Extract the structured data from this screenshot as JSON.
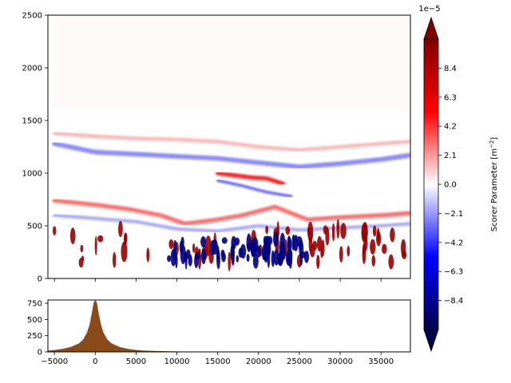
{
  "chart_data": [
    {
      "type": "heatmap",
      "title": "",
      "xlabel": "",
      "ylabel": "",
      "xlim": [
        -5800,
        38600
      ],
      "ylim": [
        0,
        2500
      ],
      "x_ticks_labeled": false,
      "x_ticks": [
        -5000,
        0,
        5000,
        10000,
        15000,
        20000,
        25000,
        30000,
        35000
      ],
      "y_ticks": [
        0,
        500,
        1000,
        1500,
        2000,
        2500
      ],
      "y_tick_labels": [
        "0",
        "500",
        "1000",
        "1500",
        "2000",
        "2500"
      ],
      "colormap": "seismic",
      "layers": [
        {
          "kind": "near-zero background",
          "x_from": -5000,
          "x_to": 38600,
          "y_from": 1600,
          "y_to": 2500,
          "value": 0.2
        },
        {
          "kind": "negative band (cool)",
          "points": [
            [
              -5000,
              1280
            ],
            [
              0,
              1200
            ],
            [
              5000,
              1180
            ],
            [
              10000,
              1160
            ],
            [
              15000,
              1140
            ],
            [
              20000,
              1100
            ],
            [
              25000,
              1060
            ],
            [
              30000,
              1090
            ],
            [
              35000,
              1130
            ],
            [
              38500,
              1170
            ]
          ],
          "thickness": 45,
          "value": -2.8
        },
        {
          "kind": "positive band (warm)",
          "points": [
            [
              -5000,
              1380
            ],
            [
              0,
              1350
            ],
            [
              5000,
              1330
            ],
            [
              10000,
              1320
            ],
            [
              15000,
              1300
            ],
            [
              20000,
              1250
            ],
            [
              25000,
              1220
            ],
            [
              30000,
              1250
            ],
            [
              35000,
              1280
            ],
            [
              38500,
              1300
            ]
          ],
          "thickness": 35,
          "value": 1.8
        },
        {
          "kind": "positive band (warm)",
          "points": [
            [
              -5000,
              740
            ],
            [
              0,
              700
            ],
            [
              4000,
              660
            ],
            [
              8000,
              600
            ],
            [
              11000,
              520
            ],
            [
              15000,
              560
            ],
            [
              18000,
              600
            ],
            [
              22000,
              680
            ],
            [
              26000,
              560
            ],
            [
              30000,
              580
            ],
            [
              35000,
              600
            ],
            [
              38500,
              620
            ]
          ],
          "thickness": 40,
          "value": 3.5
        },
        {
          "kind": "negative band (cool)",
          "points": [
            [
              -5000,
              600
            ],
            [
              0,
              570
            ],
            [
              5000,
              540
            ],
            [
              10000,
              470
            ],
            [
              15000,
              450
            ],
            [
              20000,
              500
            ],
            [
              25000,
              460
            ],
            [
              30000,
              480
            ],
            [
              35000,
              500
            ],
            [
              38500,
              520
            ]
          ],
          "thickness": 30,
          "value": -2.2
        },
        {
          "kind": "positive band (warm)",
          "points": [
            [
              15000,
              1000
            ],
            [
              17000,
              980
            ],
            [
              19000,
              960
            ],
            [
              21000,
              950
            ],
            [
              23000,
              900
            ]
          ],
          "thickness": 40,
          "value": 5.5
        },
        {
          "kind": "negative band (cool)",
          "points": [
            [
              15000,
              930
            ],
            [
              18000,
              880
            ],
            [
              21000,
              820
            ],
            [
              24000,
              780
            ]
          ],
          "thickness": 25,
          "value": -4.0
        },
        {
          "kind": "strong positive cells",
          "x_from": -5000,
          "x_to": 38000,
          "y_from": 150,
          "y_to": 480,
          "value": 9.5
        },
        {
          "kind": "strong negative cells",
          "x_from": 9000,
          "x_to": 26000,
          "y_from": 160,
          "y_to": 380,
          "value": -9.0
        }
      ]
    },
    {
      "type": "area",
      "title": "",
      "xlabel": "",
      "ylabel": "",
      "xlim": [
        -5800,
        38600
      ],
      "ylim": [
        0,
        800
      ],
      "x_ticks": [
        -5000,
        0,
        5000,
        10000,
        15000,
        20000,
        25000,
        30000,
        35000
      ],
      "x_tick_labels": [
        "−5000",
        "0",
        "5000",
        "10000",
        "15000",
        "20000",
        "25000",
        "30000",
        "35000"
      ],
      "y_ticks": [
        0,
        250,
        500,
        750
      ],
      "y_tick_labels": [
        "0",
        "250",
        "500",
        "750"
      ],
      "fill_color": "#8b4a1a",
      "series": [
        {
          "x": [
            -5800,
            -5000,
            -4000,
            -3000,
            -2000,
            -1500,
            -1000,
            -700,
            -400,
            -200,
            0,
            200,
            400,
            700,
            1000,
            1500,
            2000,
            3000,
            4000,
            5000,
            6000,
            8000,
            10000,
            12000,
            15000,
            20000,
            25000,
            30000,
            38600
          ],
          "y": [
            20,
            30,
            45,
            75,
            130,
            190,
            300,
            420,
            610,
            760,
            800,
            760,
            610,
            420,
            300,
            190,
            130,
            75,
            45,
            30,
            20,
            12,
            8,
            4,
            2,
            0,
            0,
            0,
            0
          ]
        }
      ]
    },
    {
      "type": "colorbar",
      "label": "Scorer Parameter [$m^{-2}$]",
      "label_display": "Scorer Parameter [m",
      "label_superscript": "−2",
      "label_suffix": "]",
      "scale_exponent_label": "1e−5",
      "range": [
        -10.5,
        10.5
      ],
      "extend": "both",
      "ticks": [
        -8.4,
        -6.3,
        -4.2,
        -2.1,
        0.0,
        2.1,
        4.2,
        6.3,
        8.4
      ],
      "tick_labels": [
        "−8.4",
        "−6.3",
        "−4.2",
        "−2.1",
        "0.0",
        "2.1",
        "4.2",
        "6.3",
        "8.4"
      ]
    }
  ]
}
